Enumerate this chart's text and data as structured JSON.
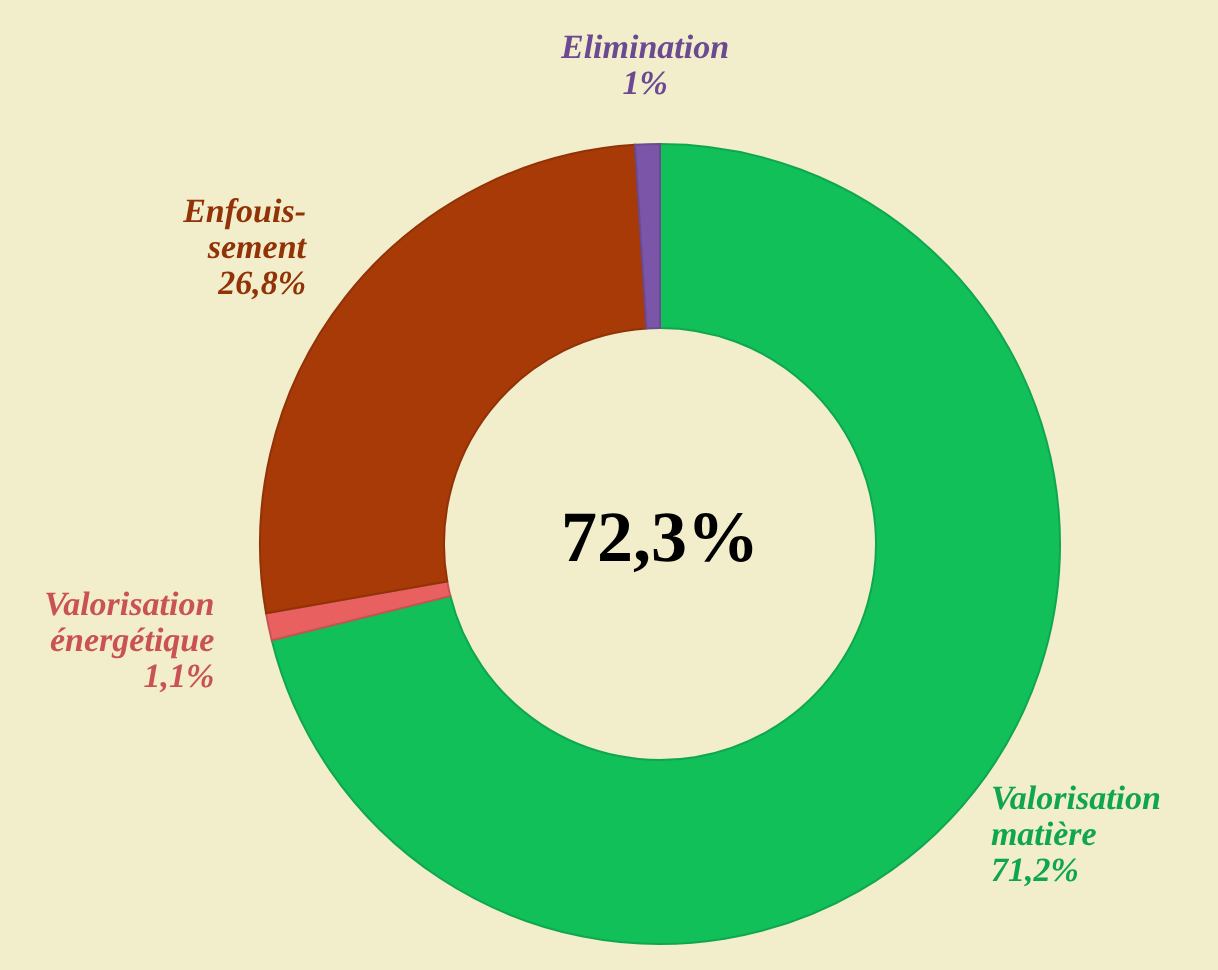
{
  "chart_data": {
    "type": "donut",
    "categories": [
      "Valorisation matière",
      "Valorisation énergétique",
      "Enfouis- sement",
      "Elimination"
    ],
    "values": [
      71.2,
      1.1,
      26.8,
      1
    ],
    "value_labels": [
      "71,2%",
      "1,1%",
      "26,8%",
      "1%"
    ],
    "colors": [
      "#12c05a",
      "#e86060",
      "#a83a08",
      "#7b55a8"
    ],
    "annotations": [
      "72,3%"
    ]
  }
}
